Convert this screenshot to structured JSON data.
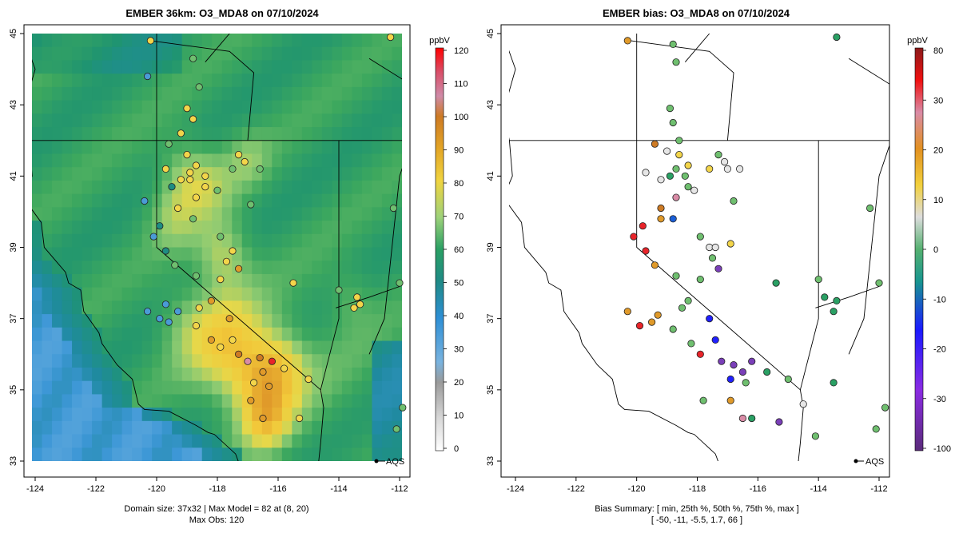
{
  "left_panel": {
    "title": "EMBER 36km: O3_MDA8 on 07/10/2024",
    "x_ticks": [
      "-124",
      "-122",
      "-120",
      "-118",
      "-116",
      "-114",
      "-112"
    ],
    "y_ticks": [
      "45",
      "43",
      "41",
      "39",
      "37",
      "35",
      "33"
    ],
    "colorbar": {
      "unit": "ppbV",
      "ticks": [
        "120",
        "110",
        "100",
        "90",
        "80",
        "70",
        "60",
        "50",
        "40",
        "30",
        "20",
        "10",
        "0"
      ]
    },
    "footer_line1": "Domain size: 37x32 | Max Model = 82 at (8, 20)",
    "footer_line2": "Max Obs: 120",
    "legend_label": "AQS"
  },
  "right_panel": {
    "title": "EMBER bias: O3_MDA8 on 07/10/2024",
    "x_ticks": [
      "-124",
      "-122",
      "-120",
      "-118",
      "-116",
      "-114",
      "-112"
    ],
    "y_ticks": [
      "45",
      "43",
      "41",
      "39",
      "37",
      "35",
      "33"
    ],
    "colorbar": {
      "unit": "ppbV",
      "ticks": [
        "80",
        "30",
        "20",
        "10",
        "0",
        "-10",
        "-20",
        "-30",
        "-100"
      ]
    },
    "footer_line1": "Bias Summary: [ min, 25th %, 50th %, 75th %, max ]",
    "footer_line2": "[ -50,   -11,   -5.5,   1.7,   66 ]",
    "legend_label": "AQS"
  },
  "chart_data": [
    {
      "type": "heatmap",
      "title": "EMBER 36km: O3_MDA8 on 07/10/2024",
      "x_range": [
        -124,
        -112
      ],
      "y_range": [
        33,
        45
      ],
      "colorbar_unit": "ppbV",
      "colorbar_range": [
        0,
        120
      ],
      "domain_size": "37x32",
      "max_model": 82,
      "max_model_cell": [
        8,
        20
      ],
      "max_obs": 120,
      "legend": "AQS"
    },
    {
      "type": "scatter",
      "title": "EMBER bias: O3_MDA8 on 07/10/2024",
      "x_range": [
        -124,
        -112
      ],
      "y_range": [
        33,
        45
      ],
      "colorbar_unit": "ppbV",
      "colorbar_range": [
        -100,
        80
      ],
      "bias_summary": {
        "min": -50,
        "p25": -11,
        "p50": -5.5,
        "p75": 1.7,
        "max": 66
      },
      "legend": "AQS"
    }
  ]
}
